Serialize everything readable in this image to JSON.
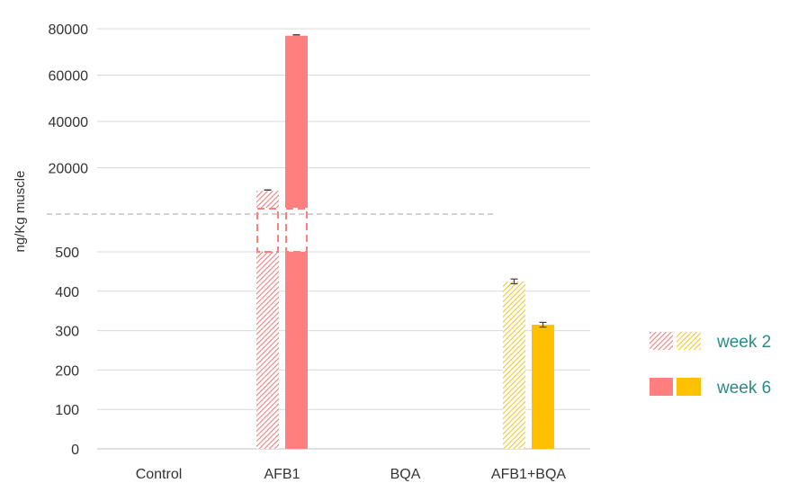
{
  "chart_data": {
    "type": "bar",
    "ylabel": "ng/Kg muscle",
    "axis_break": true,
    "lower_axis": {
      "ylim": [
        0,
        600
      ],
      "ticks": [
        0,
        100,
        200,
        300,
        400,
        500
      ]
    },
    "upper_axis": {
      "ylim": [
        0,
        80000
      ],
      "ticks": [
        20000,
        40000,
        60000,
        80000
      ]
    },
    "categories": [
      "Control",
      "AFB1",
      "BQA",
      "AFB1+BQA"
    ],
    "series": [
      {
        "name": "week 2",
        "pattern": "hatched",
        "values": [
          0,
          10000,
          0,
          425
        ],
        "errors": [
          0,
          200,
          0,
          6
        ]
      },
      {
        "name": "week 6",
        "pattern": "solid",
        "values": [
          0,
          77000,
          0,
          315
        ],
        "errors": [
          0,
          200,
          0,
          6
        ]
      }
    ],
    "colors": {
      "afb1": "#ff7f7f",
      "afb1_bqa": "#ffc000",
      "legend_text": "#2a8a8a"
    },
    "grid": true,
    "legend_position": "right"
  }
}
